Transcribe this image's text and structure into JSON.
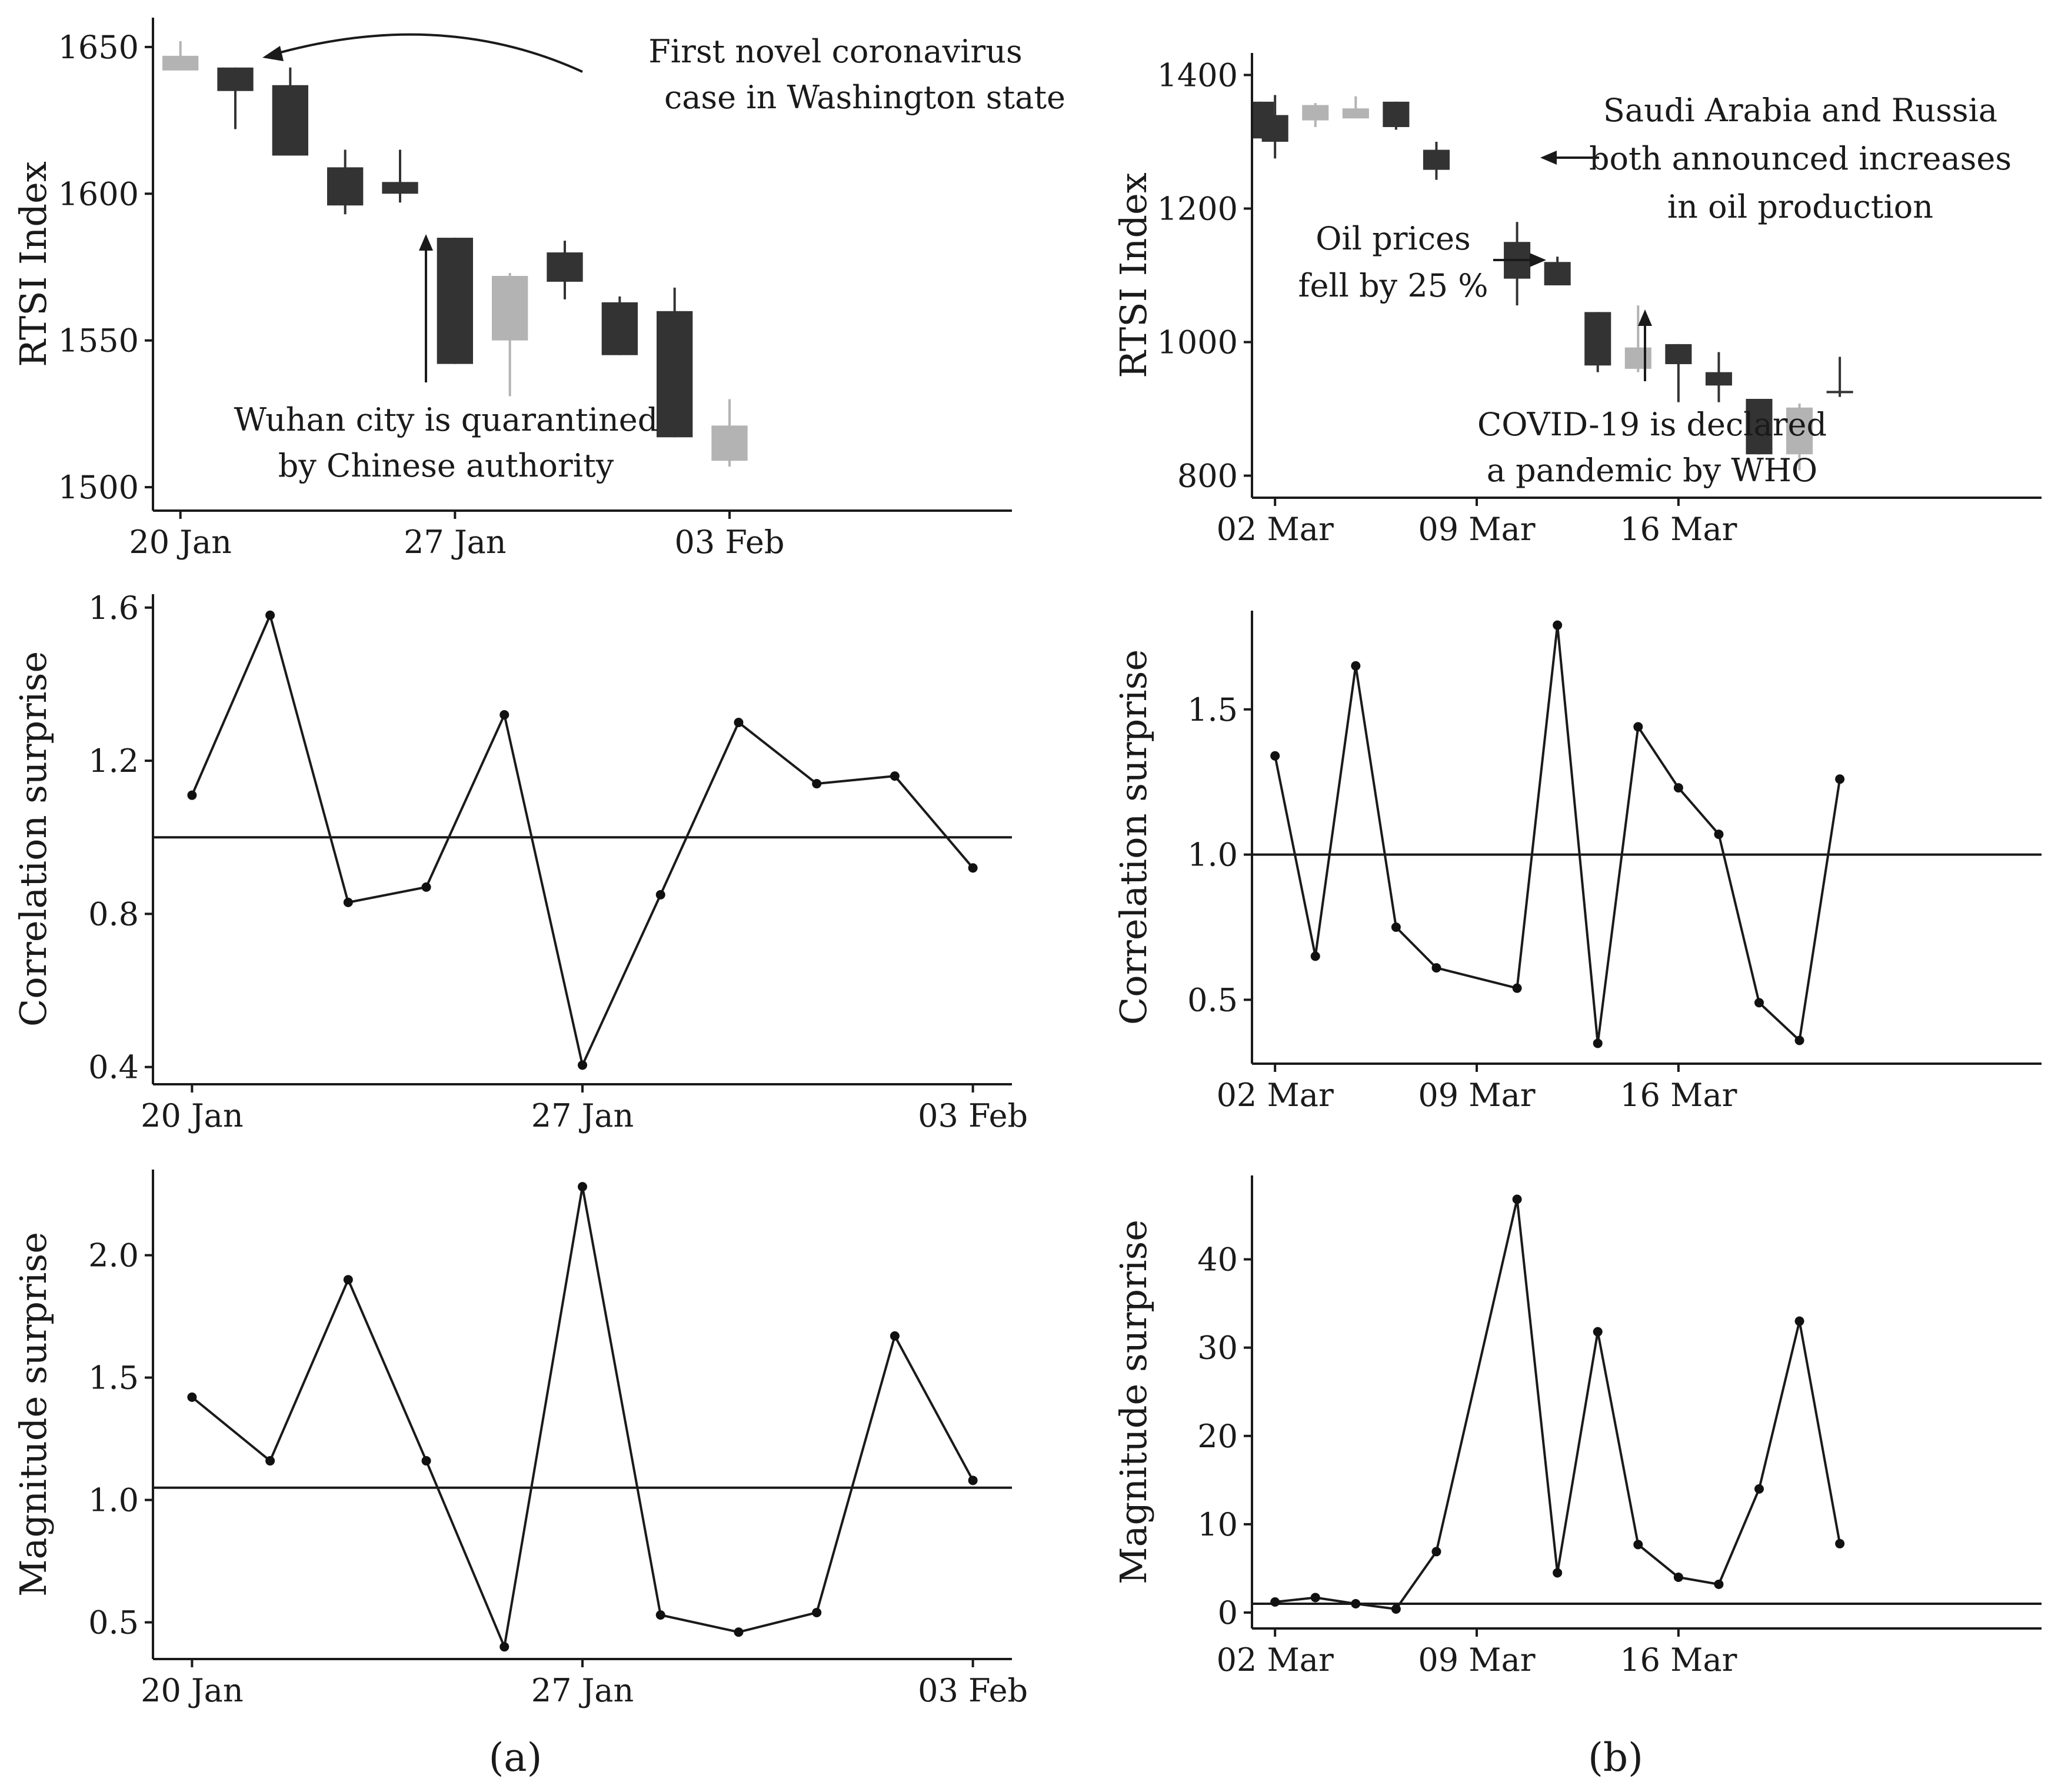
{
  "chart_data": [
    {
      "id": "a_rtsi",
      "type": "candlestick",
      "panel": "a",
      "ylabel": "RTSI Index",
      "ylim": [
        1492,
        1660
      ],
      "xlim": [
        -0.7,
        21.2
      ],
      "yticks": [
        1500,
        1550,
        1600,
        1650
      ],
      "xticks": [
        {
          "x": 0,
          "label": "20 Jan"
        },
        {
          "x": 7,
          "label": "27 Jan"
        },
        {
          "x": 14,
          "label": "03 Feb"
        }
      ],
      "colors": {
        "down": "#333333",
        "up": "#b3b3b3"
      },
      "candles": [
        {
          "x": 0,
          "open": 1642,
          "close": 1647,
          "high": 1652,
          "low": 1642
        },
        {
          "x": 1.4,
          "open": 1643,
          "close": 1635,
          "high": 1643,
          "low": 1622
        },
        {
          "x": 2.8,
          "open": 1637,
          "close": 1613,
          "high": 1643,
          "low": 1613
        },
        {
          "x": 4.2,
          "open": 1609,
          "close": 1596,
          "high": 1615,
          "low": 1593
        },
        {
          "x": 5.6,
          "open": 1604,
          "close": 1600,
          "high": 1615,
          "low": 1597
        },
        {
          "x": 7,
          "open": 1585,
          "close": 1542,
          "high": 1585,
          "low": 1542
        },
        {
          "x": 8.4,
          "open": 1550,
          "close": 1572,
          "high": 1573,
          "low": 1531
        },
        {
          "x": 9.8,
          "open": 1580,
          "close": 1570,
          "high": 1584,
          "low": 1564
        },
        {
          "x": 11.2,
          "open": 1563,
          "close": 1545,
          "high": 1565,
          "low": 1545
        },
        {
          "x": 12.6,
          "open": 1560,
          "close": 1517,
          "high": 1568,
          "low": 1517
        },
        {
          "x": 14,
          "open": 1509,
          "close": 1521,
          "high": 1530,
          "low": 1507
        }
      ]
    },
    {
      "id": "a_corr",
      "type": "line",
      "panel": "a",
      "ylabel": "Correlation surprise",
      "ylim": [
        0.355,
        1.635
      ],
      "xlim": [
        -0.7,
        14.7
      ],
      "yticks": [
        0.4,
        0.8,
        1.2,
        1.6
      ],
      "ytick_labels": [
        "0.4",
        "0.8",
        "1.2",
        "1.6"
      ],
      "xticks": [
        {
          "x": 0,
          "label": "20 Jan"
        },
        {
          "x": 7,
          "label": "27 Jan"
        },
        {
          "x": 14,
          "label": "03 Feb"
        }
      ],
      "reference": 1.0,
      "x": [
        0,
        1.4,
        2.8,
        4.2,
        5.6,
        7,
        8.4,
        9.8,
        11.2,
        12.6,
        14
      ],
      "y": [
        1.11,
        1.58,
        0.83,
        0.87,
        1.32,
        0.405,
        0.85,
        1.3,
        1.14,
        1.16,
        0.92
      ]
    },
    {
      "id": "a_mag",
      "type": "line",
      "panel": "a",
      "ylabel": "Magnitude surprise",
      "ylim": [
        0.35,
        2.35
      ],
      "xlim": [
        -0.7,
        14.7
      ],
      "yticks": [
        0.5,
        1.0,
        1.5,
        2.0
      ],
      "ytick_labels": [
        "0.5",
        "1.0",
        "1.5",
        "2.0"
      ],
      "xticks": [
        {
          "x": 0,
          "label": "20 Jan"
        },
        {
          "x": 7,
          "label": "27 Jan"
        },
        {
          "x": 14,
          "label": "03 Feb"
        }
      ],
      "reference": 1.05,
      "x": [
        0,
        1.4,
        2.8,
        4.2,
        5.6,
        7,
        8.4,
        9.8,
        11.2,
        12.6,
        14
      ],
      "y": [
        1.42,
        1.16,
        1.9,
        1.16,
        0.4,
        2.28,
        0.53,
        0.46,
        0.54,
        1.67,
        1.08
      ]
    },
    {
      "id": "b_rtsi",
      "type": "candlestick",
      "panel": "b",
      "ylabel": "RTSI Index",
      "ylim": [
        767,
        1433
      ],
      "xlim": [
        -0.8,
        26.6
      ],
      "yticks": [
        800,
        1000,
        1200,
        1400
      ],
      "xticks": [
        {
          "x": 0,
          "label": "02 Mar"
        },
        {
          "x": 7,
          "label": "09 Mar"
        },
        {
          "x": 14,
          "label": "16 Mar"
        }
      ],
      "colors": {
        "down": "#333333",
        "up": "#b3b3b3"
      },
      "candles": [
        {
          "x": -0.5,
          "open": 1360,
          "close": 1305,
          "high": 1360,
          "low": 1305
        },
        {
          "x": 0,
          "open": 1340,
          "close": 1300,
          "high": 1370,
          "low": 1275
        },
        {
          "x": 1.4,
          "open": 1332,
          "close": 1355,
          "high": 1358,
          "low": 1322
        },
        {
          "x": 2.8,
          "open": 1335,
          "close": 1350,
          "high": 1368,
          "low": 1335
        },
        {
          "x": 4.2,
          "open": 1360,
          "close": 1322,
          "high": 1360,
          "low": 1318
        },
        {
          "x": 5.6,
          "open": 1288,
          "close": 1258,
          "high": 1300,
          "low": 1243
        },
        {
          "x": 8.4,
          "open": 1150,
          "close": 1095,
          "high": 1180,
          "low": 1055
        },
        {
          "x": 9.8,
          "open": 1120,
          "close": 1085,
          "high": 1128,
          "low": 1085
        },
        {
          "x": 11.2,
          "open": 1045,
          "close": 965,
          "high": 1045,
          "low": 955
        },
        {
          "x": 12.6,
          "open": 960,
          "close": 992,
          "high": 1055,
          "low": 955
        },
        {
          "x": 14,
          "open": 997,
          "close": 967,
          "high": 997,
          "low": 910
        },
        {
          "x": 15.4,
          "open": 955,
          "close": 935,
          "high": 985,
          "low": 910
        },
        {
          "x": 16.8,
          "open": 915,
          "close": 832,
          "high": 915,
          "low": 832
        },
        {
          "x": 18.2,
          "open": 832,
          "close": 902,
          "high": 908,
          "low": 808
        },
        {
          "x": 19.6,
          "open": 927,
          "close": 924,
          "high": 978,
          "low": 918
        }
      ]
    },
    {
      "id": "b_corr",
      "type": "line",
      "panel": "b",
      "ylabel": "Correlation surprise",
      "ylim": [
        0.28,
        1.84
      ],
      "xlim": [
        -0.8,
        26.6
      ],
      "yticks": [
        0.5,
        1.0,
        1.5
      ],
      "ytick_labels": [
        "0.5",
        "1.0",
        "1.5"
      ],
      "xticks": [
        {
          "x": 0,
          "label": "02 Mar"
        },
        {
          "x": 7,
          "label": "09 Mar"
        },
        {
          "x": 14,
          "label": "16 Mar"
        }
      ],
      "reference": 1.0,
      "x": [
        0,
        1.4,
        2.8,
        4.2,
        5.6,
        8.4,
        9.8,
        11.2,
        12.6,
        14,
        15.4,
        16.8,
        18.2,
        19.6
      ],
      "y": [
        1.34,
        0.65,
        1.65,
        0.75,
        0.61,
        0.54,
        1.79,
        0.35,
        1.44,
        1.23,
        1.07,
        0.49,
        0.36,
        1.26
      ]
    },
    {
      "id": "b_mag",
      "type": "line",
      "panel": "b",
      "ylabel": "Magnitude surprise",
      "ylim": [
        -1.8,
        49.5
      ],
      "xlim": [
        -0.8,
        26.6
      ],
      "yticks": [
        0,
        10,
        20,
        30,
        40
      ],
      "ytick_labels": [
        "0",
        "10",
        "20",
        "30",
        "40"
      ],
      "xticks": [
        {
          "x": 0,
          "label": "02 Mar"
        },
        {
          "x": 7,
          "label": "09 Mar"
        },
        {
          "x": 14,
          "label": "16 Mar"
        }
      ],
      "reference": 1.0,
      "x": [
        0,
        1.4,
        2.8,
        4.2,
        5.6,
        8.4,
        9.8,
        11.2,
        12.6,
        14,
        15.4,
        16.8,
        18.2,
        19.6
      ],
      "y": [
        1.2,
        1.7,
        1.0,
        0.4,
        6.9,
        46.8,
        4.5,
        31.8,
        7.7,
        4.0,
        3.2,
        14.0,
        33.0,
        7.8
      ]
    }
  ],
  "annotations": {
    "washington_line1": "First novel coronavirus",
    "washington_line2": "case in Washington state",
    "wuhan_line1": "Wuhan city is quarantined",
    "wuhan_line2": "by Chinese authority",
    "saudi_line1": "Saudi Arabia and Russia",
    "saudi_line2": "both announced increases",
    "saudi_line3": "in oil production",
    "oil_line1": "Oil prices",
    "oil_line2": "fell by 25 %",
    "covid_line1": "COVID-19 is declared",
    "covid_line2": "a pandemic by WHO"
  },
  "panel_labels": {
    "a": "(a)",
    "b": "(b)"
  }
}
